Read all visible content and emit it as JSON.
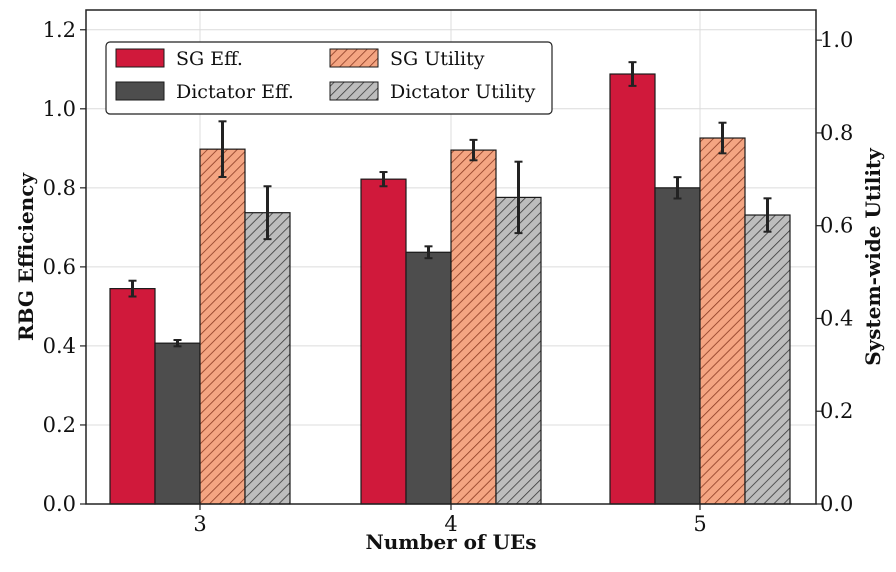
{
  "chart_data": {
    "type": "bar",
    "categories": [
      "3",
      "4",
      "5"
    ],
    "xlabel": "Number of UEs",
    "ylabel_left": "RBG Efficiency",
    "ylabel_right": "System-wide Utility",
    "ylim_left": [
      0,
      1.25
    ],
    "ylim_right": [
      0,
      1.065
    ],
    "yticks_left": [
      "0.0",
      "0.2",
      "0.4",
      "0.6",
      "0.8",
      "1.0",
      "1.2"
    ],
    "yticks_right": [
      "0.0",
      "0.2",
      "0.4",
      "0.6",
      "0.8",
      "1.0"
    ],
    "grid": true,
    "legend_position": "top-left",
    "series": [
      {
        "name": "SG Eff.",
        "axis": "left",
        "color": "#d0193b",
        "hatch": false,
        "values": [
          0.545,
          0.822,
          1.088
        ],
        "errors": [
          0.02,
          0.018,
          0.03
        ]
      },
      {
        "name": "Dictator Eff.",
        "axis": "left",
        "color": "#4d4d4d",
        "hatch": false,
        "values": [
          0.407,
          0.637,
          0.8
        ],
        "errors": [
          0.008,
          0.015,
          0.027
        ]
      },
      {
        "name": "SG Utility",
        "axis": "right",
        "color": "#f4a582",
        "hatch": true,
        "values": [
          0.765,
          0.763,
          0.789
        ],
        "errors": [
          0.06,
          0.022,
          0.033
        ]
      },
      {
        "name": "Dictator Utility",
        "axis": "right",
        "color": "#bdbdbd",
        "hatch": true,
        "values": [
          0.628,
          0.661,
          0.623
        ],
        "errors": [
          0.057,
          0.077,
          0.036
        ]
      }
    ],
    "legend": [
      {
        "label": "SG Eff.",
        "series": 0
      },
      {
        "label": "SG Utility",
        "series": 2
      },
      {
        "label": "Dictator Eff.",
        "series": 1
      },
      {
        "label": "Dictator Utility",
        "series": 3
      }
    ]
  }
}
